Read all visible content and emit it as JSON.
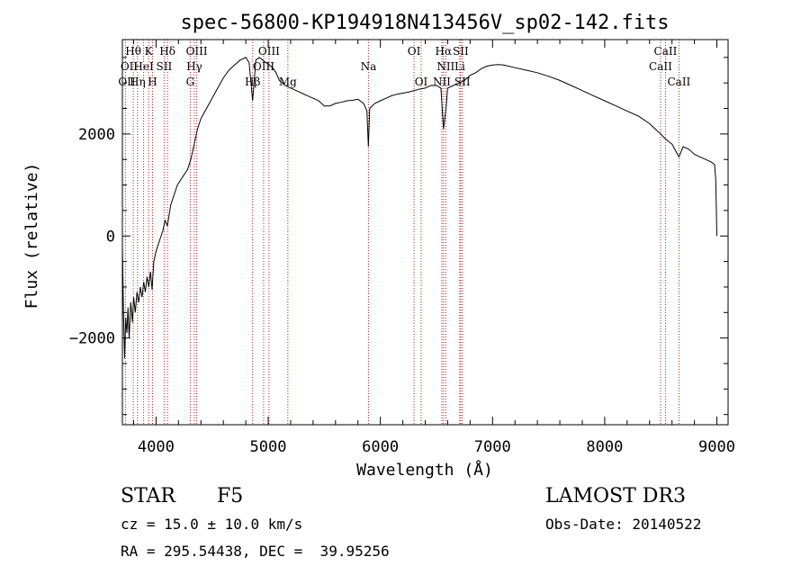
{
  "chart_data": {
    "type": "line",
    "title": "spec-56800-KP194918N413456V_sp02-142.fits",
    "xlabel": "Wavelength (Å)",
    "ylabel": "Flux (relative)",
    "xlim": [
      3700,
      9100
    ],
    "ylim": [
      -3700,
      3850
    ],
    "xticks": [
      4000,
      5000,
      6000,
      7000,
      8000,
      9000
    ],
    "xtick_labels": [
      "4000",
      "5000",
      "6000",
      "7000",
      "8000",
      "9000"
    ],
    "yticks": [
      -2000,
      0,
      2000
    ],
    "ytick_labels": [
      "−2000",
      "0",
      "2000"
    ],
    "series": [
      {
        "name": "flux",
        "x": [
          3700,
          3710,
          3720,
          3730,
          3740,
          3750,
          3760,
          3775,
          3790,
          3800,
          3815,
          3830,
          3845,
          3860,
          3875,
          3890,
          3905,
          3920,
          3935,
          3950,
          3965,
          3980,
          4000,
          4030,
          4060,
          4080,
          4101,
          4130,
          4160,
          4190,
          4220,
          4250,
          4280,
          4310,
          4340,
          4370,
          4400,
          4450,
          4500,
          4550,
          4600,
          4650,
          4700,
          4750,
          4800,
          4830,
          4861,
          4890,
          4920,
          4950,
          4980,
          5010,
          5040,
          5070,
          5100,
          5150,
          5200,
          5250,
          5300,
          5350,
          5400,
          5450,
          5500,
          5550,
          5600,
          5650,
          5700,
          5750,
          5800,
          5850,
          5880,
          5893,
          5905,
          5950,
          6000,
          6050,
          6100,
          6150,
          6200,
          6250,
          6300,
          6350,
          6400,
          6450,
          6500,
          6540,
          6563,
          6585,
          6600,
          6650,
          6700,
          6750,
          6800,
          6850,
          6900,
          6950,
          7000,
          7050,
          7100,
          7200,
          7300,
          7400,
          7500,
          7600,
          7700,
          7800,
          7900,
          8000,
          8100,
          8200,
          8300,
          8400,
          8498,
          8542,
          8600,
          8662,
          8700,
          8750,
          8800,
          8850,
          8900,
          8950,
          8980,
          8990,
          9000
        ],
        "y": [
          -200,
          -1500,
          -2400,
          -1600,
          -1900,
          -1400,
          -2000,
          -1300,
          -1700,
          -1200,
          -1500,
          -1100,
          -1300,
          -1000,
          -1200,
          -900,
          -1100,
          -800,
          -1000,
          -700,
          -1050,
          -500,
          -300,
          -100,
          100,
          300,
          200,
          600,
          800,
          1000,
          1100,
          1200,
          1300,
          1500,
          1800,
          2100,
          2300,
          2500,
          2700,
          2900,
          3100,
          3250,
          3350,
          3450,
          3500,
          3400,
          2650,
          3450,
          3500,
          3450,
          3400,
          3350,
          3300,
          3200,
          3050,
          2950,
          2900,
          2850,
          2800,
          2750,
          2700,
          2650,
          2550,
          2550,
          2600,
          2620,
          2650,
          2660,
          2680,
          2600,
          2450,
          1750,
          2500,
          2600,
          2650,
          2700,
          2750,
          2780,
          2800,
          2820,
          2850,
          2880,
          2900,
          2950,
          2950,
          2900,
          2100,
          2500,
          2900,
          2950,
          3000,
          3050,
          3150,
          3200,
          3280,
          3330,
          3350,
          3360,
          3350,
          3300,
          3250,
          3200,
          3130,
          3050,
          2950,
          2850,
          2750,
          2650,
          2550,
          2450,
          2350,
          2200,
          2000,
          1900,
          1800,
          1550,
          1750,
          1700,
          1600,
          1550,
          1500,
          1450,
          1400,
          1100,
          0
        ]
      }
    ],
    "lines": [
      {
        "name": "OII",
        "wavelength": 3727
      },
      {
        "name": "Hθ",
        "wavelength": 3797
      },
      {
        "name": "Hη",
        "wavelength": 3835
      },
      {
        "name": "HeI",
        "wavelength": 3889
      },
      {
        "name": "K",
        "wavelength": 3934
      },
      {
        "name": "H",
        "wavelength": 3969
      },
      {
        "name": "SII",
        "wavelength": 4072
      },
      {
        "name": "Hδ",
        "wavelength": 4102
      },
      {
        "name": "G",
        "wavelength": 4305
      },
      {
        "name": "Hγ",
        "wavelength": 4341
      },
      {
        "name": "OIII",
        "wavelength": 4363
      },
      {
        "name": "Hβ",
        "wavelength": 4861
      },
      {
        "name": "OIII",
        "wavelength": 4959
      },
      {
        "name": "OIII",
        "wavelength": 5007
      },
      {
        "name": "Mg",
        "wavelength": 5175
      },
      {
        "name": "Na",
        "wavelength": 5894
      },
      {
        "name": "OI",
        "wavelength": 6300
      },
      {
        "name": "OI",
        "wavelength": 6364
      },
      {
        "name": "NII",
        "wavelength": 6548
      },
      {
        "name": "Hα",
        "wavelength": 6563
      },
      {
        "name": "NII",
        "wavelength": 6583
      },
      {
        "name": "Li",
        "wavelength": 6708
      },
      {
        "name": "SII",
        "wavelength": 6716
      },
      {
        "name": "SII",
        "wavelength": 6731
      },
      {
        "name": "CaII",
        "wavelength": 8498
      },
      {
        "name": "CaII",
        "wavelength": 8542
      },
      {
        "name": "CaII",
        "wavelength": 8662
      }
    ],
    "line_labels": [
      {
        "text": "Hθ",
        "row": 1,
        "at": 3797
      },
      {
        "text": "K",
        "row": 1,
        "at": 3934
      },
      {
        "text": "Hδ",
        "row": 1,
        "at": 4102
      },
      {
        "text": "OIII",
        "row": 1,
        "at": 4363
      },
      {
        "text": "OIII",
        "row": 1,
        "at": 5007
      },
      {
        "text": "OI",
        "row": 1,
        "at": 6300
      },
      {
        "text": "Hα",
        "row": 1,
        "at": 6563
      },
      {
        "text": "SII",
        "row": 1,
        "at": 6716
      },
      {
        "text": "CaII",
        "row": 1,
        "at": 8542
      },
      {
        "text": "OII",
        "row": 2,
        "at": 3760
      },
      {
        "text": "HeI",
        "row": 2,
        "at": 3889
      },
      {
        "text": "SII",
        "row": 2,
        "at": 4072
      },
      {
        "text": "Hγ",
        "row": 2,
        "at": 4341
      },
      {
        "text": "OIII",
        "row": 2,
        "at": 4959
      },
      {
        "text": "Na",
        "row": 2,
        "at": 5894
      },
      {
        "text": "NII",
        "row": 2,
        "at": 6583
      },
      {
        "text": "Li",
        "row": 2,
        "at": 6708
      },
      {
        "text": "CaII",
        "row": 2,
        "at": 8498
      },
      {
        "text": "OII",
        "row": 3,
        "at": 3740
      },
      {
        "text": "Hη",
        "row": 3,
        "at": 3835
      },
      {
        "text": "H",
        "row": 3,
        "at": 3969
      },
      {
        "text": "G",
        "row": 3,
        "at": 4305
      },
      {
        "text": "Hβ",
        "row": 3,
        "at": 4861
      },
      {
        "text": "Mg",
        "row": 3,
        "at": 5175
      },
      {
        "text": "OI",
        "row": 3,
        "at": 6364
      },
      {
        "text": "NII",
        "row": 3,
        "at": 6548
      },
      {
        "text": "SII",
        "row": 3,
        "at": 6731
      },
      {
        "text": "CaII",
        "row": 3,
        "at": 8662
      }
    ],
    "colors": {
      "spectrum": "#000000",
      "lines": "#b22222",
      "axes": "#000000"
    },
    "grid": false
  },
  "info": {
    "object_class": "STAR",
    "subclass": "F5",
    "survey": "LAMOST DR3",
    "cz": "cz = 15.0 ± 10.0 km/s",
    "obs_date": "Obs-Date: 20140522",
    "coords": "RA = 295.54438, DEC =  39.95256"
  }
}
